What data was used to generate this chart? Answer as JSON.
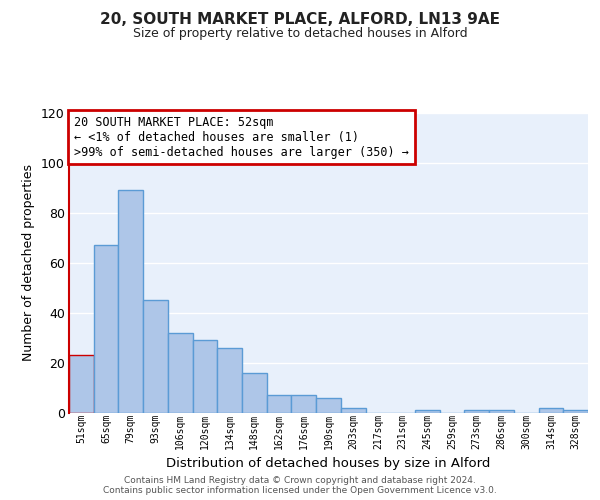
{
  "title": "20, SOUTH MARKET PLACE, ALFORD, LN13 9AE",
  "subtitle": "Size of property relative to detached houses in Alford",
  "xlabel": "Distribution of detached houses by size in Alford",
  "ylabel": "Number of detached properties",
  "bin_labels": [
    "51sqm",
    "65sqm",
    "79sqm",
    "93sqm",
    "106sqm",
    "120sqm",
    "134sqm",
    "148sqm",
    "162sqm",
    "176sqm",
    "190sqm",
    "203sqm",
    "217sqm",
    "231sqm",
    "245sqm",
    "259sqm",
    "273sqm",
    "286sqm",
    "300sqm",
    "314sqm",
    "328sqm"
  ],
  "bar_heights": [
    23,
    67,
    89,
    45,
    32,
    29,
    26,
    16,
    7,
    7,
    6,
    2,
    0,
    0,
    1,
    0,
    1,
    1,
    0,
    2,
    1
  ],
  "bar_color": "#aec6e8",
  "bar_edge_color": "#5b9bd5",
  "highlight_edge_color": "#cc0000",
  "annotation_text": "20 SOUTH MARKET PLACE: 52sqm\n← <1% of detached houses are smaller (1)\n>99% of semi-detached houses are larger (350) →",
  "annotation_box_edge_color": "#cc0000",
  "annotation_box_face_color": "#ffffff",
  "ylim": [
    0,
    120
  ],
  "yticks": [
    0,
    20,
    40,
    60,
    80,
    100,
    120
  ],
  "background_color": "#e8f0fb",
  "grid_color": "#ffffff",
  "footer_line1": "Contains HM Land Registry data © Crown copyright and database right 2024.",
  "footer_line2": "Contains public sector information licensed under the Open Government Licence v3.0."
}
